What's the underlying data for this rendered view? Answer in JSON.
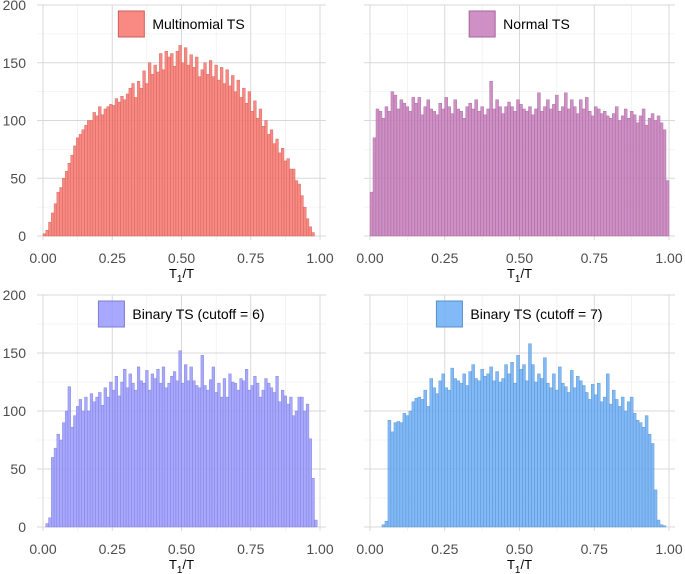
{
  "chart_data": [
    {
      "type": "bar",
      "legend": "Multinomial TS",
      "color": "#F8766D",
      "xlabel": "T",
      "xlabel_sub": "1",
      "xlabel_suffix": "/T",
      "xlim": [
        0,
        1
      ],
      "ylim": [
        0,
        200
      ],
      "x_ticks": [
        "0.00",
        "0.25",
        "0.50",
        "0.75",
        "1.00"
      ],
      "y_ticks": [
        "0",
        "50",
        "100",
        "150",
        "200"
      ],
      "y_ticks_shown": true,
      "grid": true,
      "legend_position": "top-center",
      "bin_width": 0.01,
      "values": [
        2,
        5,
        12,
        20,
        28,
        38,
        42,
        50,
        56,
        63,
        70,
        78,
        85,
        88,
        92,
        96,
        100,
        100,
        107,
        104,
        112,
        105,
        110,
        112,
        114,
        113,
        119,
        116,
        121,
        118,
        123,
        128,
        132,
        120,
        134,
        128,
        143,
        132,
        150,
        140,
        148,
        142,
        158,
        144,
        160,
        155,
        158,
        147,
        160,
        165,
        150,
        163,
        148,
        157,
        146,
        155,
        138,
        144,
        150,
        140,
        152,
        138,
        148,
        135,
        146,
        132,
        144,
        130,
        139,
        125,
        135,
        120,
        128,
        115,
        125,
        108,
        117,
        102,
        110,
        95,
        100,
        88,
        92,
        80,
        84,
        72,
        76,
        65,
        67,
        58,
        58,
        48,
        45,
        35,
        25,
        15,
        8,
        3,
        0,
        0
      ]
    },
    {
      "type": "bar",
      "legend": "Normal TS",
      "color": "#C77CBB",
      "xlabel": "T",
      "xlabel_sub": "1",
      "xlabel_suffix": "/T",
      "xlim": [
        0,
        1
      ],
      "ylim": [
        0,
        200
      ],
      "x_ticks": [
        "0.00",
        "0.25",
        "0.50",
        "0.75",
        "1.00"
      ],
      "y_ticks": [
        "0",
        "50",
        "100",
        "150",
        "200"
      ],
      "y_ticks_shown": false,
      "grid": true,
      "legend_position": "top-center",
      "bin_width": 0.01,
      "values": [
        38,
        85,
        110,
        108,
        102,
        112,
        108,
        125,
        122,
        110,
        118,
        115,
        112,
        108,
        120,
        115,
        120,
        105,
        112,
        118,
        110,
        108,
        105,
        115,
        110,
        120,
        112,
        106,
        118,
        110,
        108,
        102,
        112,
        115,
        110,
        118,
        108,
        112,
        105,
        110,
        134,
        110,
        118,
        112,
        106,
        112,
        116,
        112,
        108,
        118,
        114,
        110,
        108,
        112,
        105,
        110,
        124,
        108,
        112,
        118,
        110,
        114,
        122,
        108,
        112,
        124,
        110,
        118,
        112,
        106,
        118,
        110,
        120,
        108,
        104,
        112,
        110,
        106,
        108,
        104,
        102,
        106,
        112,
        100,
        104,
        110,
        102,
        108,
        105,
        98,
        104,
        110,
        96,
        102,
        106,
        100,
        104,
        98,
        92,
        48
      ]
    },
    {
      "type": "bar",
      "legend": "Binary TS (cutoff = 6)",
      "color": "#9999FF",
      "xlabel": "T",
      "xlabel_sub": "1",
      "xlabel_suffix": "/T",
      "xlim": [
        0,
        1
      ],
      "ylim": [
        0,
        200
      ],
      "x_ticks": [
        "0.00",
        "0.25",
        "0.50",
        "0.75",
        "1.00"
      ],
      "y_ticks": [
        "0",
        "50",
        "100",
        "150",
        "200"
      ],
      "y_ticks_shown": true,
      "grid": true,
      "legend_position": "top-center",
      "bin_width": 0.01,
      "values": [
        0,
        3,
        8,
        60,
        68,
        80,
        75,
        90,
        100,
        121,
        86,
        96,
        104,
        110,
        100,
        112,
        100,
        115,
        108,
        112,
        116,
        105,
        120,
        112,
        125,
        118,
        130,
        113,
        125,
        136,
        120,
        132,
        124,
        118,
        138,
        126,
        124,
        135,
        118,
        132,
        128,
        136,
        124,
        138,
        120,
        124,
        130,
        134,
        126,
        152,
        124,
        140,
        126,
        138,
        126,
        122,
        120,
        148,
        122,
        118,
        127,
        138,
        116,
        124,
        112,
        128,
        112,
        132,
        125,
        124,
        118,
        128,
        126,
        136,
        118,
        122,
        130,
        124,
        112,
        118,
        128,
        124,
        120,
        116,
        130,
        108,
        118,
        113,
        106,
        112,
        96,
        100,
        112,
        112,
        100,
        106,
        76,
        42,
        6,
        0
      ]
    },
    {
      "type": "bar",
      "legend": "Binary TS (cutoff = 7)",
      "color": "#6BAEF5",
      "xlabel": "T",
      "xlabel_sub": "1",
      "xlabel_suffix": "/T",
      "xlim": [
        0,
        1
      ],
      "ylim": [
        0,
        200
      ],
      "x_ticks": [
        "0.00",
        "0.25",
        "0.50",
        "0.75",
        "1.00"
      ],
      "y_ticks": [
        "0",
        "50",
        "100",
        "150",
        "200"
      ],
      "y_ticks_shown": false,
      "grid": true,
      "legend_position": "top-center",
      "bin_width": 0.01,
      "values": [
        0,
        0,
        0,
        0,
        2,
        5,
        92,
        82,
        90,
        91,
        90,
        98,
        96,
        100,
        108,
        111,
        112,
        110,
        118,
        104,
        128,
        120,
        115,
        126,
        132,
        120,
        118,
        137,
        128,
        126,
        124,
        132,
        122,
        134,
        140,
        128,
        126,
        136,
        130,
        132,
        138,
        126,
        134,
        125,
        128,
        140,
        132,
        142,
        124,
        148,
        136,
        140,
        126,
        158,
        140,
        125,
        132,
        128,
        146,
        124,
        120,
        132,
        118,
        138,
        124,
        121,
        116,
        135,
        120,
        130,
        126,
        122,
        116,
        110,
        123,
        114,
        124,
        108,
        112,
        132,
        106,
        118,
        110,
        104,
        112,
        100,
        108,
        112,
        98,
        92,
        90,
        86,
        96,
        80,
        72,
        32,
        6,
        2,
        1,
        0
      ]
    }
  ]
}
